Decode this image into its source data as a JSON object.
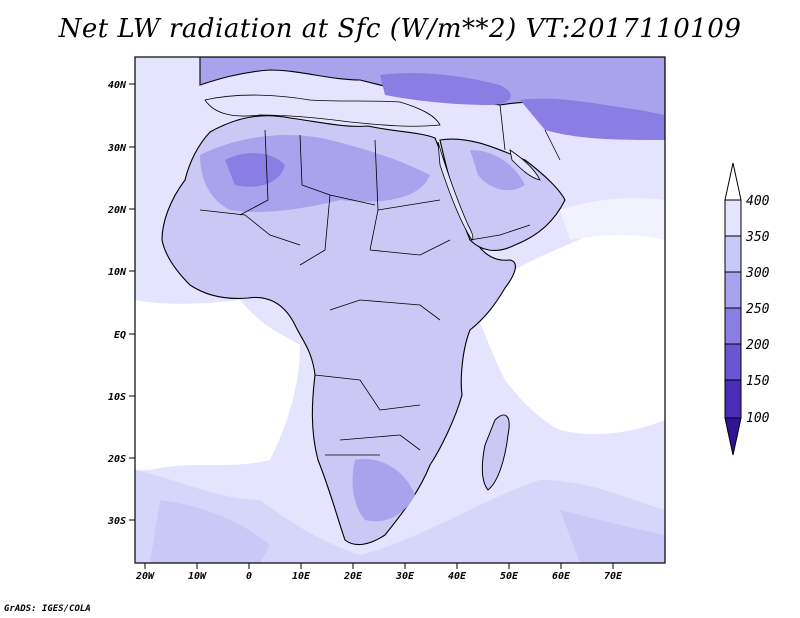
{
  "title": "Net LW radiation at Sfc (W/m**2) VT:2017110109",
  "credit": "GrADS: IGES/COLA",
  "map": {
    "lat_labels": [
      "40N",
      "30N",
      "20N",
      "10N",
      "EQ",
      "10S",
      "20S",
      "30S"
    ],
    "lon_labels": [
      "20W",
      "10W",
      "0",
      "10E",
      "20E",
      "30E",
      "40E",
      "50E",
      "60E",
      "70E"
    ]
  },
  "colorbar": {
    "labels": [
      "400",
      "350",
      "300",
      "250",
      "200",
      "150",
      "100"
    ],
    "colors": [
      "#ffffff",
      "#e4e4ff",
      "#c9c9f7",
      "#a9a3ee",
      "#8a7ee4",
      "#6a55d2",
      "#4a2cba",
      "#2f1496"
    ]
  }
}
